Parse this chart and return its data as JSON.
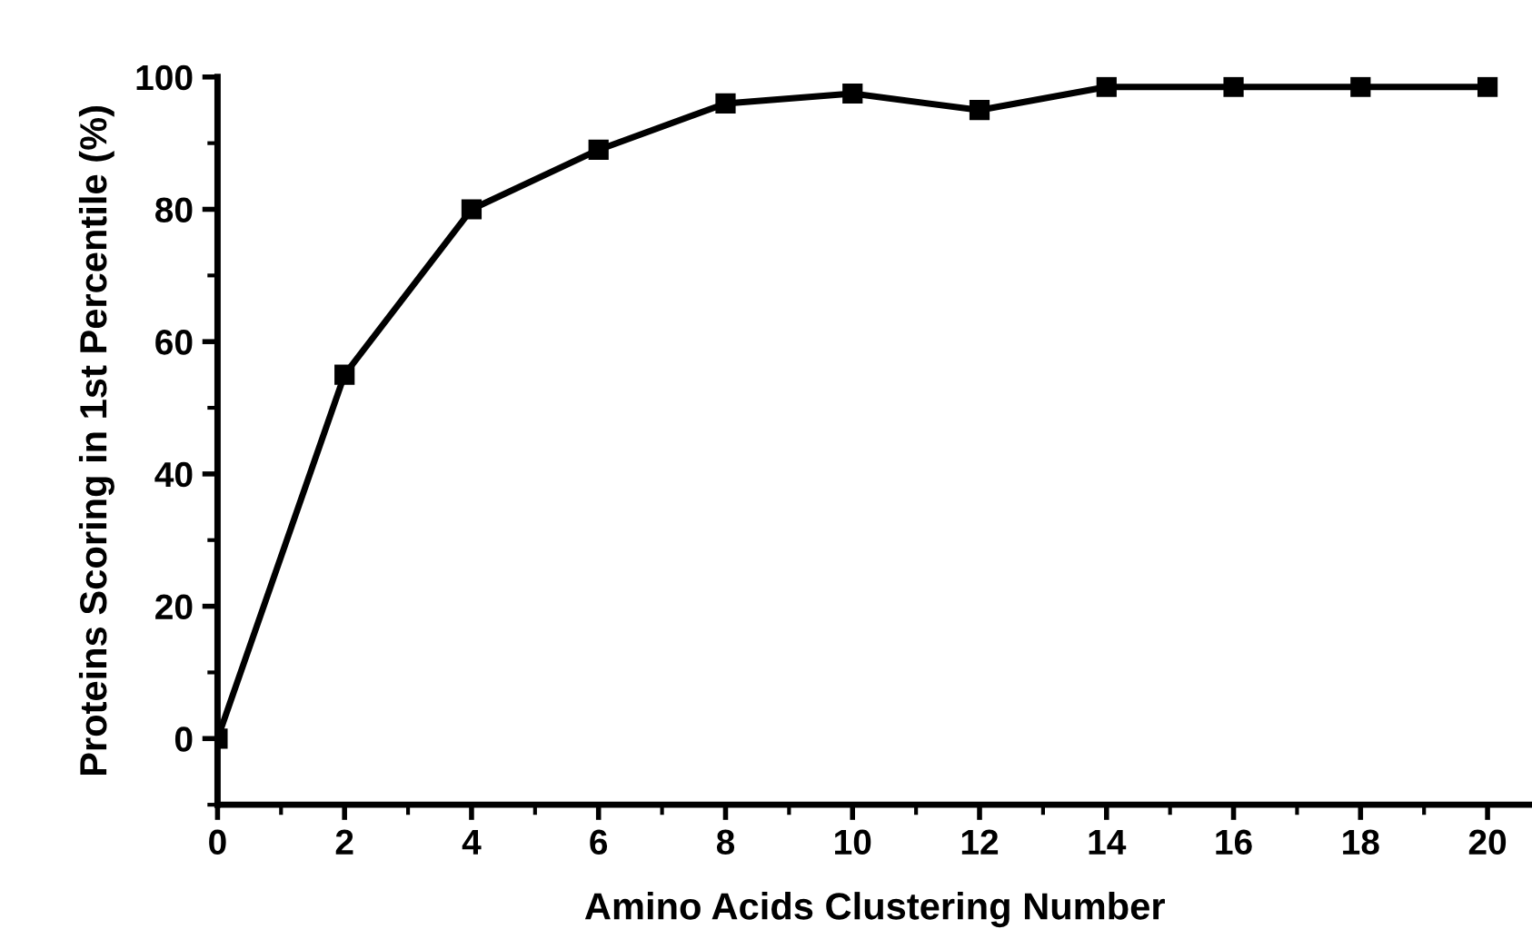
{
  "chart_data": {
    "type": "line",
    "xlabel": "Amino Acids Clustering Number",
    "ylabel": "Proteins Scoring in 1st Percentile (%)",
    "x": [
      0,
      2,
      4,
      6,
      8,
      10,
      12,
      14,
      16,
      18,
      20
    ],
    "series": [
      {
        "color": "#000000",
        "values": [
          0,
          55,
          80,
          89,
          96,
          97.5,
          95,
          98.5,
          98.5,
          98.5,
          98.5
        ]
      }
    ],
    "xlim": [
      0,
      20.7
    ],
    "ylim": [
      -10,
      100
    ],
    "xticks": [
      0,
      2,
      4,
      6,
      8,
      10,
      12,
      14,
      16,
      18,
      20
    ],
    "yticks": [
      0,
      20,
      40,
      60,
      80,
      100
    ],
    "marker": "square",
    "line_style": "solid",
    "grid": false,
    "legend": false
  }
}
